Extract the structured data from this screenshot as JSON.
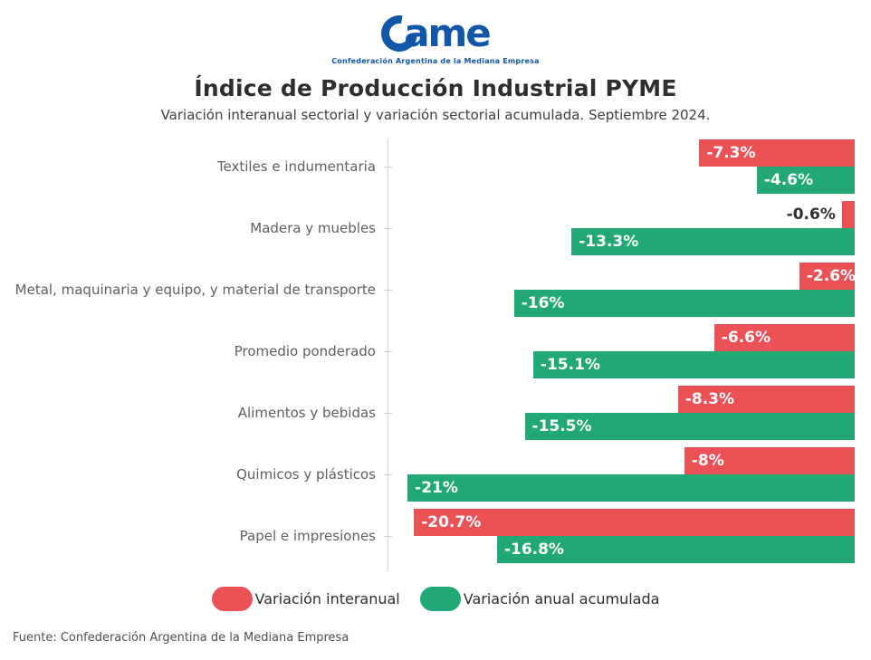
{
  "logo": {
    "wordmark": "ame",
    "tagline": "Confederación Argentina de la Mediana Empresa",
    "color": "#1257A7"
  },
  "header": {
    "title": "Índice de Producción Industrial PYME",
    "subtitle": "Variación interanual sectorial y variación sectorial acumulada. Septiembre 2024."
  },
  "chart_data": {
    "type": "bar",
    "orientation": "horizontal",
    "bars_anchor": "right",
    "grid": false,
    "legend_position": "bottom",
    "xlim": [
      -21.9,
      0
    ],
    "categories": [
      "Textiles e indumentaria",
      "Madera y muebles",
      "Metal, maquinaria y equipo, y material de transporte",
      "Promedio ponderado",
      "Alimentos y bebidas",
      "Quimicos y plásticos",
      "Papel e impresiones"
    ],
    "series": [
      {
        "name": "Variación interanual",
        "color": "#EA5258",
        "values": [
          -7.3,
          -0.6,
          -2.6,
          -6.6,
          -8.3,
          -8,
          -20.7
        ],
        "labels": [
          "-7.3%",
          "-0.6%",
          "-2.6%",
          "-6.6%",
          "-8.3%",
          "-8%",
          "-20.7%"
        ]
      },
      {
        "name": "Variación anual acumulada",
        "color": "#21A875",
        "values": [
          -4.6,
          -13.3,
          -16,
          -15.1,
          -15.5,
          -21,
          -16.8
        ],
        "labels": [
          "-4.6%",
          "-13.3%",
          "-16%",
          "-15.1%",
          "-15.5%",
          "-21%",
          "-16.8%"
        ]
      }
    ]
  },
  "footer": {
    "source": "Fuente: Confederación Argentina de la Mediana Empresa"
  }
}
